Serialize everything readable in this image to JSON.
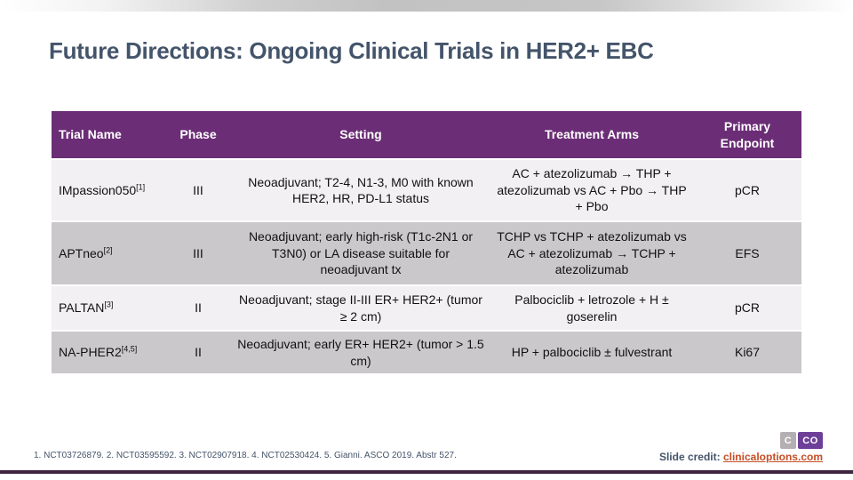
{
  "slide": {
    "title": "Future Directions: Ongoing Clinical Trials in HER2+ EBC",
    "colors": {
      "header_purple": "#6B2E76",
      "row_light": "#F2F0F2",
      "row_gray": "#CBC8CB",
      "title_slate": "#44546A",
      "accent_line_purple": "#3F2440",
      "link_orange": "#C54E25"
    }
  },
  "table": {
    "columns": [
      "Trial Name",
      "Phase",
      "Setting",
      "Treatment Arms",
      "Primary Endpoint"
    ],
    "rows": [
      {
        "trial": "IMpassion050",
        "ref": "[1]",
        "phase": "III",
        "setting": "Neoadjuvant; T2-4, N1-3, M0 with known HER2, HR, PD-L1 status",
        "arms": "AC + atezolizumab → THP + atezolizumab vs AC + Pbo → THP + Pbo",
        "endpoint": "pCR"
      },
      {
        "trial": "APTneo",
        "ref": "[2]",
        "phase": "III",
        "setting": "Neoadjuvant; early high-risk (T1c-2N1 or T3N0) or LA disease suitable for neoadjuvant tx",
        "arms": "TCHP vs TCHP + atezolizumab vs AC + atezolizumab → TCHP + atezolizumab",
        "endpoint": "EFS"
      },
      {
        "trial": "PALTAN",
        "ref": "[3]",
        "phase": "II",
        "setting": "Neoadjuvant; stage II-III ER+ HER2+ (tumor ≥ 2 cm)",
        "arms": "Palbociclib + letrozole + H ± goserelin",
        "endpoint": "pCR"
      },
      {
        "trial": "NA-PHER2",
        "ref": "[4,5]",
        "phase": "II",
        "setting": "Neoadjuvant; early ER+ HER2+ (tumor > 1.5 cm)",
        "arms": "HP + palbociclib ± fulvestrant",
        "endpoint": "Ki67"
      }
    ]
  },
  "footer": {
    "references": "1. NCT03726879. 2. NCT03595592. 3. NCT02907918. 4. NCT02530424. 5. Gianni. ASCO 2019. Abstr 527.",
    "slide_credit_label": "Slide credit: ",
    "slide_credit_link": "clinicaloptions.com",
    "logo": {
      "left": "C",
      "right": "CO"
    }
  }
}
